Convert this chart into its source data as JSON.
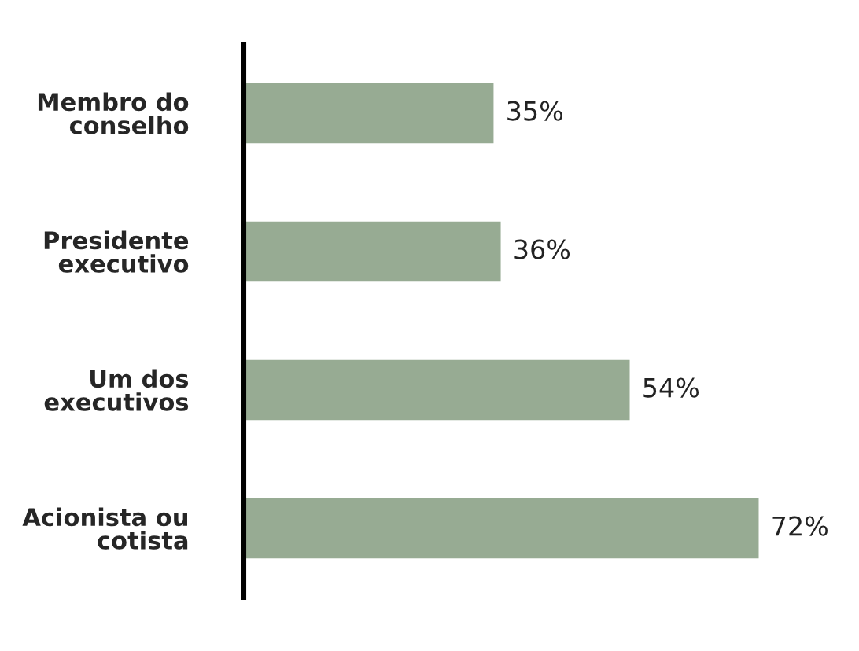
{
  "chart_data": {
    "type": "bar",
    "orientation": "horizontal",
    "categories": [
      "Membro do\nconselho",
      "Presidente\nexecutivo",
      "Um dos\nexecutivos",
      "Acionista ou\ncotista"
    ],
    "values": [
      35,
      36,
      54,
      72
    ],
    "value_labels": [
      "35%",
      "36%",
      "54%",
      "72%"
    ],
    "color": "#97ab93",
    "grid": false,
    "legend": false
  }
}
